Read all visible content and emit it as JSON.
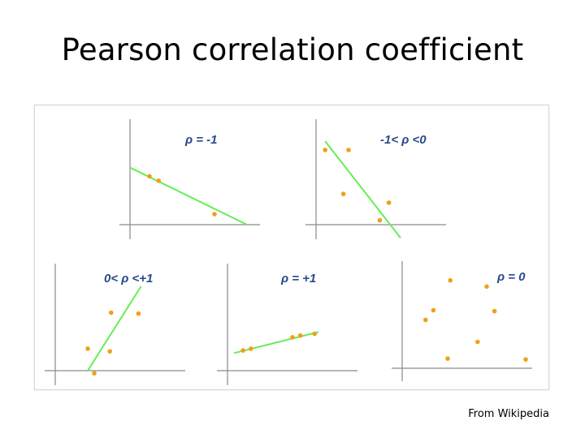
{
  "slide": {
    "title": "Pearson correlation coefficient",
    "credit": "From Wikipedia"
  },
  "colors": {
    "axis": "#8a8a8a",
    "point": "#f0a018",
    "fit_line": "#66ee55",
    "label": "#2a4a8a"
  },
  "chart_data": [
    {
      "type": "scatter",
      "title": "ρ = -1",
      "points": [
        [
          1.5,
          5.5
        ],
        [
          2.2,
          5.0
        ],
        [
          6.5,
          1.2
        ]
      ],
      "fit_line": [
        [
          0,
          6.5
        ],
        [
          9,
          0
        ]
      ],
      "xlim": [
        0,
        10
      ],
      "ylim": [
        0,
        12
      ]
    },
    {
      "type": "scatter",
      "title": "-1< ρ <0",
      "points": [
        [
          0.7,
          8.5
        ],
        [
          2.5,
          8.5
        ],
        [
          2.1,
          3.5
        ],
        [
          5.6,
          2.5
        ],
        [
          4.9,
          0.5
        ]
      ],
      "fit_line": [
        [
          0.7,
          9.5
        ],
        [
          6.5,
          -1.5
        ]
      ],
      "xlim": [
        0,
        10
      ],
      "ylim": [
        0,
        12
      ]
    },
    {
      "type": "scatter",
      "title": "0< ρ <+1",
      "points": [
        [
          2.5,
          2.5
        ],
        [
          4.3,
          6.6
        ],
        [
          4.2,
          2.2
        ],
        [
          6.4,
          6.5
        ],
        [
          3.0,
          -0.3
        ]
      ],
      "fit_line": [
        [
          2.5,
          0
        ],
        [
          6.6,
          9.6
        ]
      ],
      "xlim": [
        0,
        10
      ],
      "ylim": [
        0,
        12
      ]
    },
    {
      "type": "scatter",
      "title": "ρ = +1",
      "points": [
        [
          1.2,
          2.3
        ],
        [
          1.8,
          2.5
        ],
        [
          5.0,
          3.8
        ],
        [
          5.6,
          4.0
        ],
        [
          6.7,
          4.2
        ]
      ],
      "fit_line": [
        [
          0.5,
          2.0
        ],
        [
          7.0,
          4.4
        ]
      ],
      "xlim": [
        0,
        10
      ],
      "ylim": [
        0,
        12
      ]
    },
    {
      "type": "scatter",
      "title": "ρ = 0",
      "points": [
        [
          3.7,
          10.0
        ],
        [
          6.5,
          9.3
        ],
        [
          2.4,
          6.6
        ],
        [
          7.1,
          6.5
        ],
        [
          1.8,
          5.5
        ],
        [
          5.8,
          3.0
        ],
        [
          3.5,
          1.1
        ],
        [
          9.5,
          1.0
        ]
      ],
      "fit_line": [],
      "xlim": [
        0,
        10
      ],
      "ylim": [
        0,
        12
      ]
    }
  ]
}
